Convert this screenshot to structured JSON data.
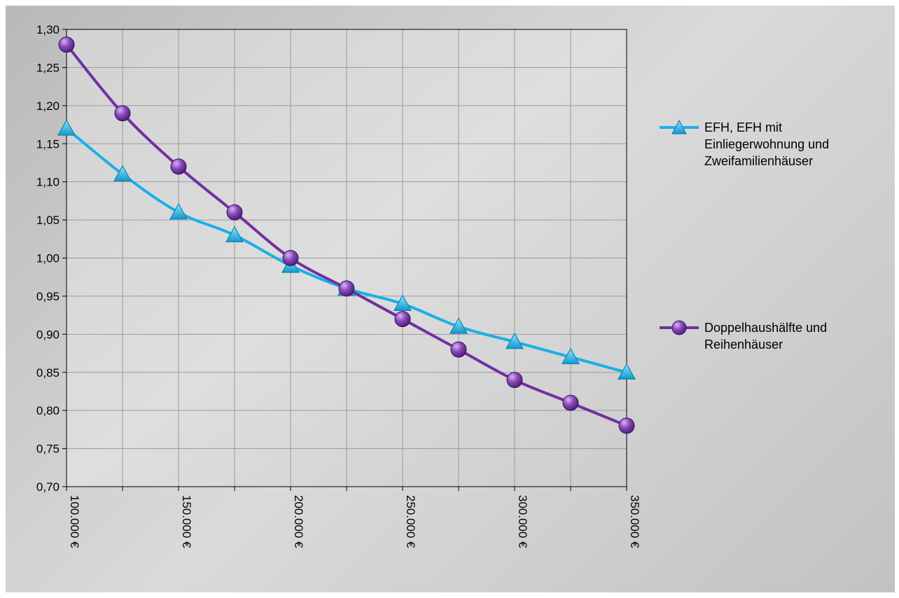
{
  "chart_data": {
    "type": "line",
    "x": [
      100000,
      125000,
      150000,
      175000,
      200000,
      225000,
      250000,
      275000,
      300000,
      325000,
      350000
    ],
    "xlim": [
      100000,
      350000
    ],
    "x_ticks": [
      100000,
      150000,
      200000,
      250000,
      300000,
      350000
    ],
    "x_tick_labels": [
      "100.000 €",
      "150.000 €",
      "200.000 €",
      "250.000 €",
      "300.000 €",
      "350.000 €"
    ],
    "ylim": [
      0.7,
      1.3
    ],
    "y_ticks": [
      0.7,
      0.75,
      0.8,
      0.85,
      0.9,
      0.95,
      1.0,
      1.05,
      1.1,
      1.15,
      1.2,
      1.25,
      1.3
    ],
    "y_tick_labels": [
      "0,70",
      "0,75",
      "0,80",
      "0,85",
      "0,90",
      "0,95",
      "1,00",
      "1,05",
      "1,10",
      "1,15",
      "1,20",
      "1,25",
      "1,30"
    ],
    "grid": true,
    "legend_position": "right",
    "series": [
      {
        "name": "EFH, EFH mit Einliegerwohnung und Zweifamilienhäuser",
        "values": [
          1.17,
          1.11,
          1.06,
          1.03,
          0.99,
          0.96,
          0.94,
          0.91,
          0.89,
          0.87,
          0.85
        ],
        "color": "#1ab0e6",
        "marker": "triangle"
      },
      {
        "name": "Doppelhaushälfte und Reihenhäuser",
        "values": [
          1.28,
          1.19,
          1.12,
          1.06,
          1.0,
          0.96,
          0.92,
          0.88,
          0.84,
          0.81,
          0.78
        ],
        "color": "#7030a0",
        "marker": "circle"
      }
    ]
  },
  "legend": {
    "items": [
      {
        "label": "EFH, EFH mit Einliegerwohnung und Zweifamilienhäuser"
      },
      {
        "label": "Doppelhaushälfte und Reihenhäuser"
      }
    ]
  }
}
